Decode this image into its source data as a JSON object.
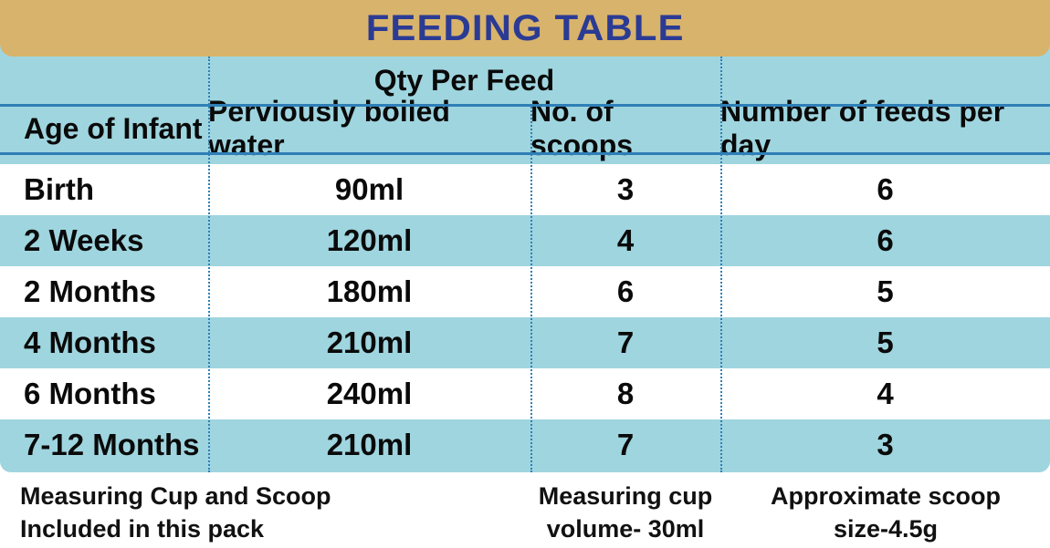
{
  "title": "FEEDING TABLE",
  "group_header": "Qty Per Feed",
  "columns": [
    "Age of Infant",
    "Perviously boiled water",
    "No. of scoops",
    "Number of feeds per day"
  ],
  "rows": [
    {
      "age": "Birth",
      "water": "90ml",
      "scoops": "3",
      "feeds": "6"
    },
    {
      "age": "2 Weeks",
      "water": "120ml",
      "scoops": "4",
      "feeds": "6"
    },
    {
      "age": "2 Months",
      "water": "180ml",
      "scoops": "6",
      "feeds": "5"
    },
    {
      "age": "4 Months",
      "water": "210ml",
      "scoops": "7",
      "feeds": "5"
    },
    {
      "age": "6 Months",
      "water": "240ml",
      "scoops": "8",
      "feeds": "4"
    },
    {
      "age": "7-12 Months",
      "water": "210ml",
      "scoops": "7",
      "feeds": "3"
    }
  ],
  "footer": {
    "note1_line1": "Measuring Cup and Scoop",
    "note1_line2": "Included in this pack",
    "note2_line1": "Measuring cup",
    "note2_line2": "volume- 30ml",
    "note3_line1": "Approximate scoop",
    "note3_line2": "size-4.5g"
  },
  "colors": {
    "title_bar": "#d8b36b",
    "title_text": "#2b3b94",
    "teal_band": "#9fd5df",
    "rule_blue": "#2f7fb7"
  }
}
